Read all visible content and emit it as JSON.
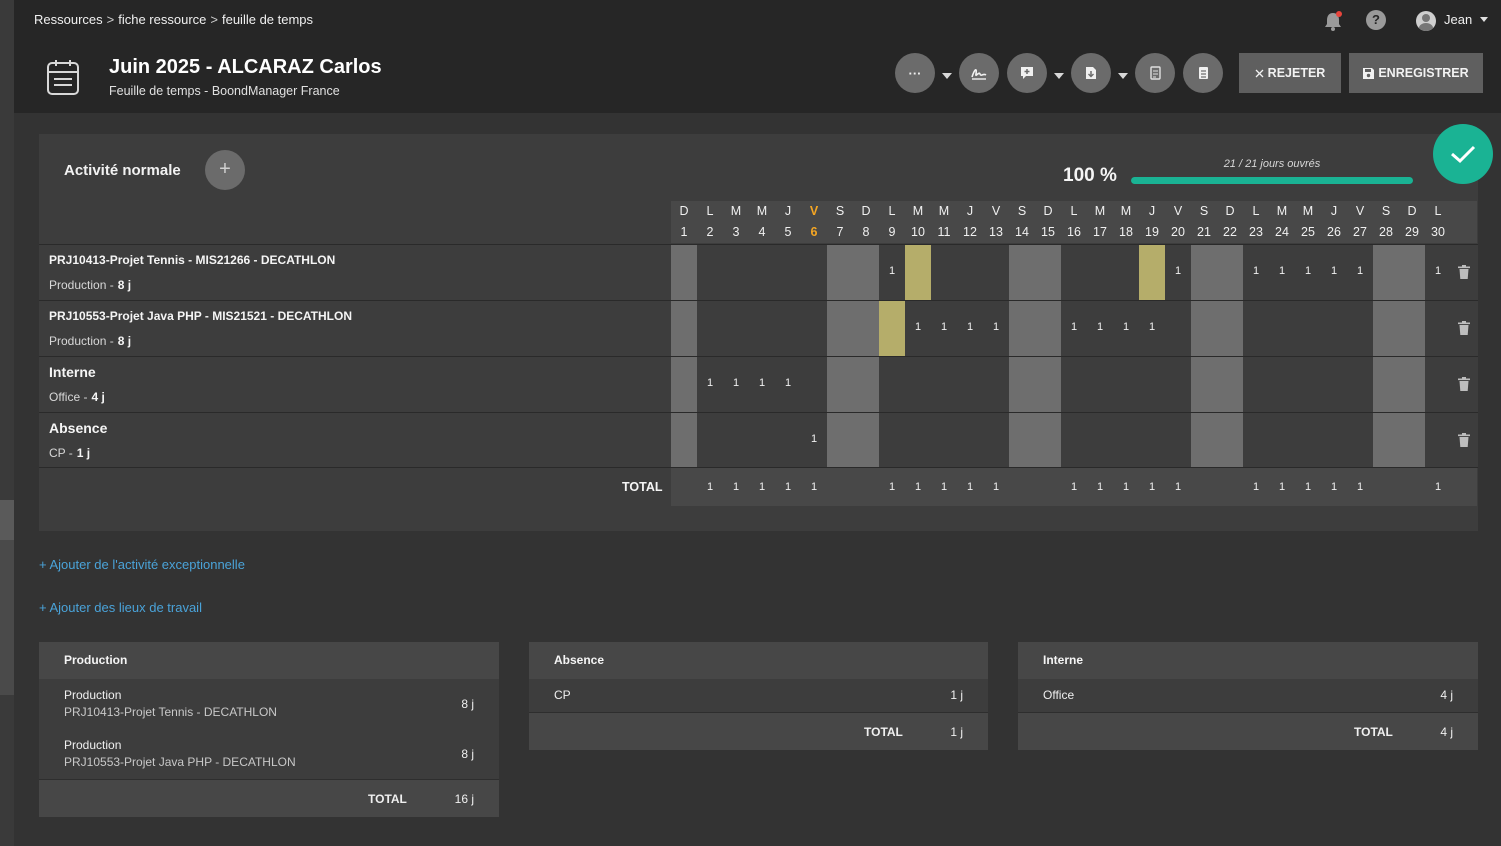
{
  "breadcrumb": [
    "Ressources",
    "fiche ressource",
    "feuille de temps"
  ],
  "breadcrumb_sep": ">",
  "user": {
    "name": "Jean"
  },
  "help_label": "?",
  "page": {
    "title": "Juin 2025 - ALCARAZ Carlos",
    "subtitle": "Feuille de temps - BoondManager France"
  },
  "actions": {
    "more_label": "···",
    "reject_label": "REJETER",
    "save_label": "ENREGISTRER"
  },
  "activity": {
    "title": "Activité normale",
    "add_label": "+",
    "percent": "100 %",
    "days_worked": "21 / 21 jours ouvrés",
    "progress": 1.0
  },
  "days": [
    {
      "l": "D",
      "n": "1",
      "we": true
    },
    {
      "l": "L",
      "n": "2"
    },
    {
      "l": "M",
      "n": "3"
    },
    {
      "l": "M",
      "n": "4"
    },
    {
      "l": "J",
      "n": "5"
    },
    {
      "l": "V",
      "n": "6",
      "hl": true
    },
    {
      "l": "S",
      "n": "7",
      "we": true
    },
    {
      "l": "D",
      "n": "8",
      "we": true
    },
    {
      "l": "L",
      "n": "9"
    },
    {
      "l": "M",
      "n": "10"
    },
    {
      "l": "M",
      "n": "11"
    },
    {
      "l": "J",
      "n": "12"
    },
    {
      "l": "V",
      "n": "13"
    },
    {
      "l": "S",
      "n": "14",
      "we": true
    },
    {
      "l": "D",
      "n": "15",
      "we": true
    },
    {
      "l": "L",
      "n": "16"
    },
    {
      "l": "M",
      "n": "17"
    },
    {
      "l": "M",
      "n": "18"
    },
    {
      "l": "J",
      "n": "19"
    },
    {
      "l": "V",
      "n": "20"
    },
    {
      "l": "S",
      "n": "21",
      "we": true
    },
    {
      "l": "D",
      "n": "22",
      "we": true
    },
    {
      "l": "L",
      "n": "23"
    },
    {
      "l": "M",
      "n": "24"
    },
    {
      "l": "M",
      "n": "25"
    },
    {
      "l": "J",
      "n": "26"
    },
    {
      "l": "V",
      "n": "27"
    },
    {
      "l": "S",
      "n": "28",
      "we": true
    },
    {
      "l": "D",
      "n": "29",
      "we": true
    },
    {
      "l": "L",
      "n": "30"
    }
  ],
  "rows": [
    {
      "name": "PRJ10413-Projet Tennis - MIS21266 - DECATHLON",
      "sub": "Production -",
      "total": "8 j",
      "big": false,
      "values": {
        "9": "1",
        "20": "1",
        "23": "1",
        "24": "1",
        "25": "1",
        "26": "1",
        "27": "1",
        "30": "1"
      },
      "recurring": [
        "10",
        "19"
      ]
    },
    {
      "name": "PRJ10553-Projet Java PHP - MIS21521 - DECATHLON",
      "sub": "Production -",
      "total": "8 j",
      "big": false,
      "values": {
        "10": "1",
        "11": "1",
        "12": "1",
        "13": "1",
        "16": "1",
        "17": "1",
        "18": "1",
        "19": "1"
      },
      "recurring": [
        "9"
      ]
    },
    {
      "name": "Interne",
      "sub": "Office -",
      "total": "4 j",
      "big": true,
      "values": {
        "2": "1",
        "3": "1",
        "4": "1",
        "5": "1"
      },
      "recurring": []
    },
    {
      "name": "Absence",
      "sub": "CP -",
      "total": "1 j",
      "big": true,
      "values": {
        "6": "1"
      },
      "recurring": []
    }
  ],
  "totals": {
    "label": "TOTAL",
    "values": {
      "2": "1",
      "3": "1",
      "4": "1",
      "5": "1",
      "6": "1",
      "9": "1",
      "10": "1",
      "11": "1",
      "12": "1",
      "13": "1",
      "16": "1",
      "17": "1",
      "18": "1",
      "19": "1",
      "20": "1",
      "23": "1",
      "24": "1",
      "25": "1",
      "26": "1",
      "27": "1",
      "30": "1"
    }
  },
  "links": {
    "exceptional": "+ Ajouter de l'activité exceptionnelle",
    "workplaces": "+ Ajouter des lieux de travail"
  },
  "summary": {
    "production": {
      "title": "Production",
      "items": [
        {
          "type": "Production",
          "project": "PRJ10413-Projet Tennis - DECATHLON",
          "value": "8 j"
        },
        {
          "type": "Production",
          "project": "PRJ10553-Projet Java PHP - DECATHLON",
          "value": "8 j"
        }
      ],
      "total_label": "TOTAL",
      "total": "16 j"
    },
    "absence": {
      "title": "Absence",
      "items": [
        {
          "type": "CP",
          "value": "1 j"
        }
      ],
      "total_label": "TOTAL",
      "total": "1 j"
    },
    "interne": {
      "title": "Interne",
      "items": [
        {
          "type": "Office",
          "value": "4 j"
        }
      ],
      "total_label": "TOTAL",
      "total": "4 j"
    }
  },
  "colors": {
    "accent": "#1ab394",
    "link": "#4aa3d9",
    "weekend": "#6e6e6e",
    "recurring": "#b5ad6a",
    "today": "#f5a623",
    "notify": "#e8453c"
  },
  "icons": [
    "bell-icon",
    "help-icon",
    "user-avatar-icon",
    "calendar-sheet-icon",
    "more-icon",
    "signature-icon",
    "comment-icon",
    "download-icon",
    "document-icon",
    "clipboard-icon",
    "close-icon",
    "save-icon",
    "checkmark-icon",
    "trash-icon",
    "plus-icon"
  ]
}
